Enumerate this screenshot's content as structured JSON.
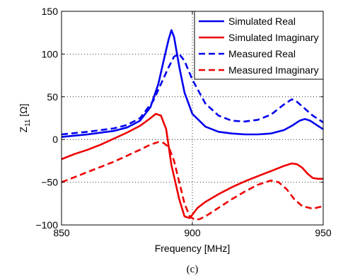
{
  "chart_data": {
    "type": "line",
    "title": "",
    "xlabel": "Frequency [MHz]",
    "ylabel_main": "Z",
    "ylabel_sub": "11",
    "ylabel_unit": " [Ω]",
    "xlim": [
      850,
      950
    ],
    "ylim": [
      -100,
      150
    ],
    "xticks": [
      "850",
      "900",
      "950"
    ],
    "yticks": [
      "150",
      "100",
      "50",
      "0",
      "−50",
      "−100"
    ],
    "grid": true,
    "legend_position": "top-right",
    "caption": "(c)",
    "series": [
      {
        "name": "Simulated Real",
        "color": "#0000ee",
        "dash": "solid",
        "x": [
          850,
          860,
          870,
          875,
          880,
          884,
          887,
          889,
          891,
          892,
          893,
          895,
          897,
          900,
          905,
          910,
          915,
          920,
          925,
          930,
          935,
          938,
          941,
          943,
          945,
          948,
          950
        ],
        "y": [
          3,
          6,
          10,
          14,
          22,
          38,
          65,
          92,
          118,
          128,
          120,
          85,
          55,
          30,
          15,
          9,
          7,
          6,
          6,
          7,
          11,
          16,
          22,
          24,
          22,
          16,
          12
        ]
      },
      {
        "name": "Simulated Imaginary",
        "color": "#ee0000",
        "dash": "solid",
        "x": [
          850,
          855,
          860,
          865,
          870,
          875,
          880,
          884,
          886,
          888,
          890,
          892,
          895,
          897,
          899,
          900,
          902,
          905,
          910,
          915,
          920,
          925,
          930,
          935,
          938,
          940,
          942,
          944,
          946,
          948,
          950
        ],
        "y": [
          -23,
          -17,
          -12,
          -6,
          1,
          8,
          16,
          25,
          30,
          28,
          12,
          -30,
          -70,
          -90,
          -92,
          -88,
          -80,
          -73,
          -64,
          -56,
          -49,
          -43,
          -37,
          -31,
          -28,
          -29,
          -33,
          -40,
          -45,
          -46,
          -46
        ]
      },
      {
        "name": "Measured Real",
        "color": "#0000ee",
        "dash": "dashed",
        "x": [
          850,
          860,
          870,
          875,
          880,
          885,
          888,
          891,
          893,
          895,
          897,
          900,
          905,
          910,
          915,
          920,
          925,
          930,
          935,
          938,
          940,
          943,
          946,
          950
        ],
        "y": [
          6,
          9,
          13,
          17,
          25,
          45,
          65,
          85,
          97,
          100,
          92,
          70,
          42,
          28,
          22,
          21,
          23,
          29,
          41,
          47,
          44,
          36,
          28,
          20
        ]
      },
      {
        "name": "Measured Imaginary",
        "color": "#ee0000",
        "dash": "dashed",
        "x": [
          850,
          855,
          860,
          865,
          870,
          875,
          880,
          884,
          887,
          889,
          891,
          893,
          895,
          897,
          899,
          901,
          903,
          906,
          910,
          915,
          920,
          925,
          930,
          933,
          936,
          939,
          942,
          946,
          950
        ],
        "y": [
          -50,
          -44,
          -38,
          -32,
          -26,
          -19,
          -12,
          -6,
          -3,
          -4,
          -9,
          -25,
          -50,
          -75,
          -90,
          -94,
          -93,
          -88,
          -80,
          -70,
          -61,
          -53,
          -48,
          -50,
          -58,
          -70,
          -78,
          -81,
          -78
        ]
      }
    ]
  }
}
